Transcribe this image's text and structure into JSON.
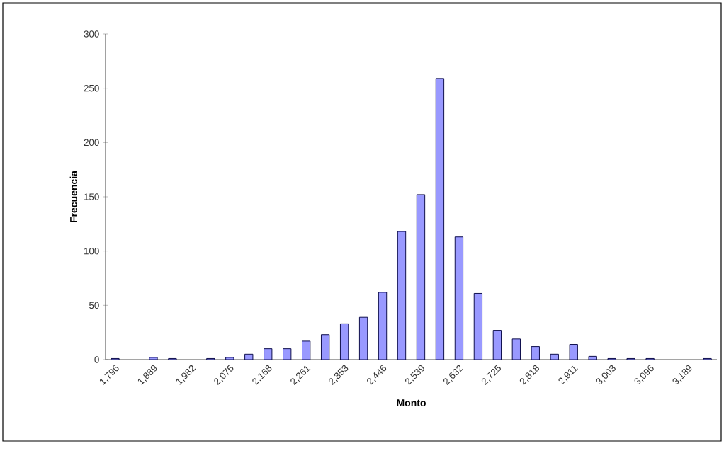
{
  "chart_data": {
    "type": "bar",
    "xlabel": "Monto",
    "ylabel": "Frecuencia",
    "categories": [
      "1,796",
      null,
      "1,889",
      null,
      "1,982",
      null,
      "2,075",
      null,
      "2,168",
      null,
      "2,261",
      null,
      "2,353",
      null,
      "2,446",
      null,
      "2,539",
      null,
      "2,632",
      null,
      "2,725",
      null,
      "2,818",
      null,
      "2,911",
      null,
      "3,003",
      null,
      "3,096",
      null,
      "3,189",
      null
    ],
    "values": [
      1,
      0,
      2,
      1,
      0,
      1,
      2,
      5,
      10,
      10,
      17,
      23,
      33,
      39,
      62,
      118,
      152,
      259,
      113,
      61,
      27,
      19,
      12,
      5,
      14,
      3,
      1,
      1,
      1,
      0,
      0,
      1
    ],
    "color": "#9999ff",
    "ylim": [
      0,
      300
    ],
    "yticks": [
      0,
      50,
      100,
      150,
      200,
      250,
      300
    ],
    "grid": false
  }
}
